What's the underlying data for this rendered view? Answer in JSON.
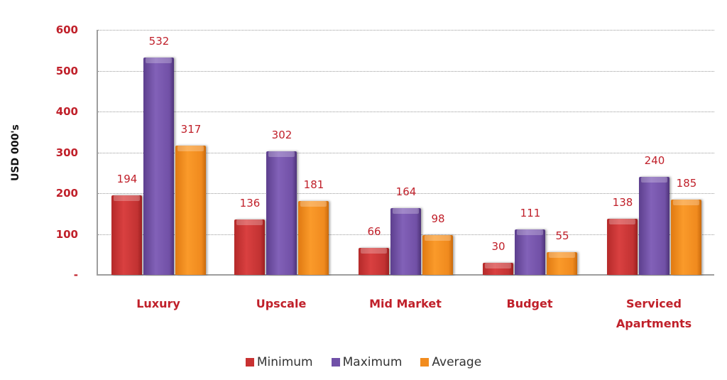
{
  "chart_data": {
    "type": "bar",
    "title": "",
    "xlabel": "",
    "ylabel": "USD 000's",
    "ylim": [
      0,
      600
    ],
    "yticks": [
      "-",
      "100",
      "200",
      "300",
      "400",
      "500",
      "600"
    ],
    "grid": true,
    "legend_position": "bottom",
    "categories": [
      "Luxury",
      "Upscale",
      "Mid Market",
      "Budget",
      "Serviced Apartments"
    ],
    "series": [
      {
        "name": "Minimum",
        "color": "#c83232",
        "values": [
          194,
          136,
          66,
          30,
          138
        ]
      },
      {
        "name": "Maximum",
        "color": "#7050a8",
        "values": [
          532,
          302,
          164,
          111,
          240
        ]
      },
      {
        "name": "Average",
        "color": "#f28c1e",
        "values": [
          317,
          181,
          98,
          55,
          185
        ]
      }
    ]
  },
  "colors": {
    "label_red": "#c0202a"
  }
}
